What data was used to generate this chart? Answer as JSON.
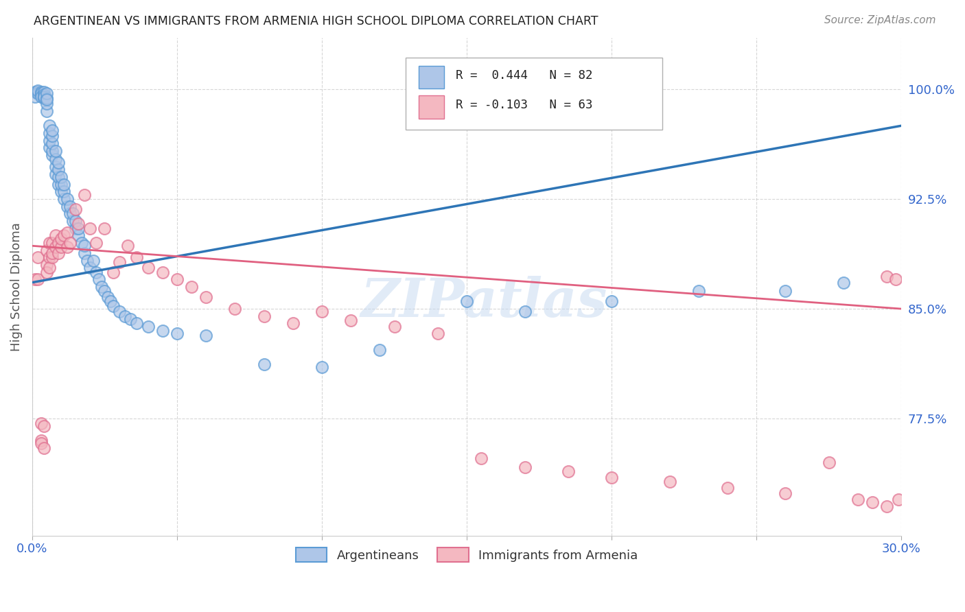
{
  "title": "ARGENTINEAN VS IMMIGRANTS FROM ARMENIA HIGH SCHOOL DIPLOMA CORRELATION CHART",
  "source": "Source: ZipAtlas.com",
  "ylabel": "High School Diploma",
  "yticks": [
    "77.5%",
    "85.0%",
    "92.5%",
    "100.0%"
  ],
  "ytick_vals": [
    0.775,
    0.85,
    0.925,
    1.0
  ],
  "xlim": [
    0.0,
    0.3
  ],
  "ylim": [
    0.695,
    1.035
  ],
  "blue_color": "#aec6e8",
  "blue_edge": "#5b9bd5",
  "pink_color": "#f4b8c1",
  "pink_edge": "#e07090",
  "line_blue": "#2e75b6",
  "line_pink": "#e06080",
  "blue_line_x": [
    0.0,
    0.3
  ],
  "blue_line_y": [
    0.868,
    0.975
  ],
  "pink_line_x": [
    0.0,
    0.3
  ],
  "pink_line_y": [
    0.893,
    0.85
  ],
  "watermark": "ZIPatlas",
  "background_color": "#ffffff",
  "grid_color": "#cccccc",
  "legend_text1_r": "0.444",
  "legend_text1_n": "82",
  "legend_text2_r": "-0.103",
  "legend_text2_n": "63"
}
